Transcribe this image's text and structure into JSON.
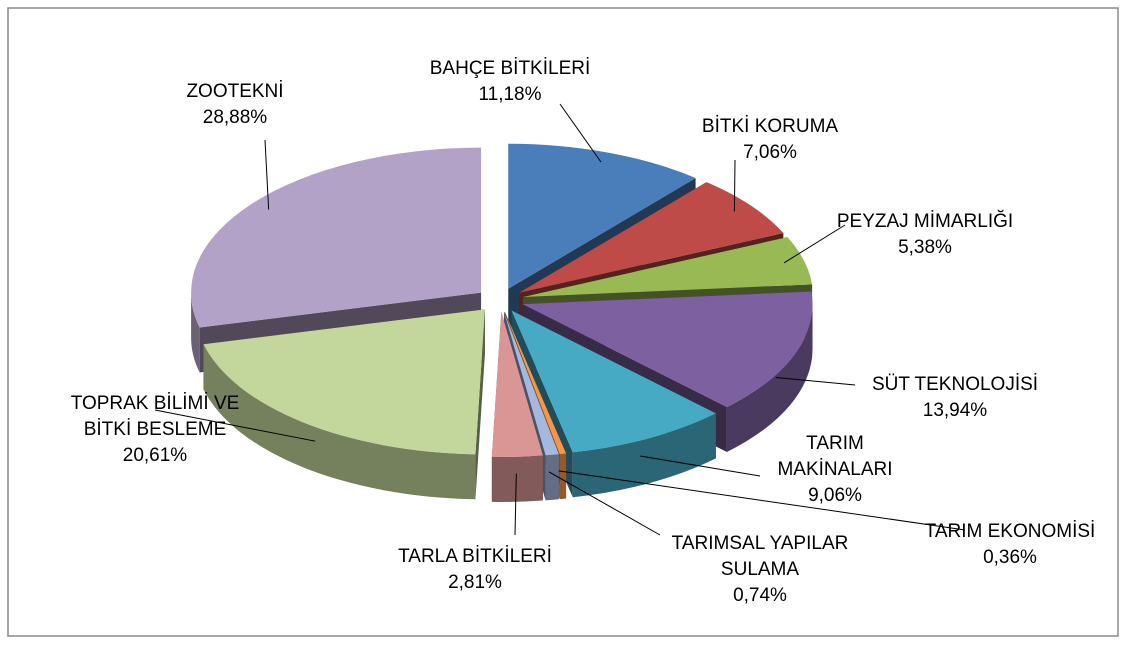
{
  "chart_data": {
    "type": "pie3d",
    "categories": [
      "BAHÇE BİTKİLERİ",
      "BİTKİ KORUMA",
      "PEYZAJ MİMARLIĞI",
      "SÜT TEKNOLOJİSİ",
      "TARIM MAKİNALARI",
      "TARIM EKONOMİSİ",
      "TARIMSAL YAPILAR SULAMA",
      "TARLA BİTKİLERİ",
      "TOPRAK BİLİMİ VE BİTKİ BESLEME",
      "ZOOTEKNİ"
    ],
    "values": [
      11.18,
      7.06,
      5.38,
      13.94,
      9.06,
      0.36,
      0.74,
      2.81,
      20.61,
      28.88
    ],
    "value_labels": [
      "11,18%",
      "7,06%",
      "5,38%",
      "13,94%",
      "9,06%",
      "0,36%",
      "0,74%",
      "2,81%",
      "20,61%",
      "28,88%"
    ],
    "colors": [
      "#4a7ebb",
      "#be4b48",
      "#98b954",
      "#7d60a0",
      "#46aac5",
      "#f79646",
      "#a5b8e0",
      "#d99694",
      "#c3d69b",
      "#b3a2c7"
    ]
  }
}
